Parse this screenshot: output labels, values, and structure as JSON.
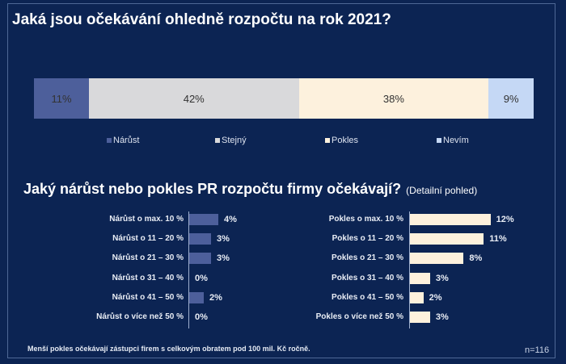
{
  "title": "Jaká jsou očekávání ohledně rozpočtu na rok 2021?",
  "subtitle": "Jaký nárůst nebo pokles PR rozpočtu firmy očekávají?",
  "subtitle_note": "(Detailní pohled)",
  "footnote": "Menší pokles očekávají zástupci firem s celkovým obratem pod 100 mil. Kč ročně.",
  "sample_size": "n=116",
  "colors": {
    "background": "#0c2453",
    "narust": "#4d5f9b",
    "stejny": "#d9d9db",
    "pokles": "#fdf1dd",
    "nevim": "#c5d8f5"
  },
  "stacked": {
    "segments": [
      {
        "label": "Nárůst",
        "value": 11,
        "text": "11%"
      },
      {
        "label": "Stejný",
        "value": 42,
        "text": "42%"
      },
      {
        "label": "Pokles",
        "value": 38,
        "text": "38%"
      },
      {
        "label": "Nevím",
        "value": 9,
        "text": "9%"
      }
    ]
  },
  "narust": {
    "rows": [
      {
        "label": "Nárůst o max. 10 %",
        "value": 4,
        "text": "4%"
      },
      {
        "label": "Nárůst o 11 – 20 %",
        "value": 3,
        "text": "3%"
      },
      {
        "label": "Nárůst o 21 – 30 %",
        "value": 3,
        "text": "3%"
      },
      {
        "label": "Nárůst o 31 – 40 %",
        "value": 0,
        "text": "0%"
      },
      {
        "label": "Nárůst o 41 – 50 %",
        "value": 2,
        "text": "2%"
      },
      {
        "label": "Nárůst o více než 50 %",
        "value": 0,
        "text": "0%"
      }
    ]
  },
  "pokles": {
    "rows": [
      {
        "label": "Pokles o max. 10 %",
        "value": 12,
        "text": "12%"
      },
      {
        "label": "Pokles o 11 – 20 %",
        "value": 11,
        "text": "11%"
      },
      {
        "label": "Pokles o 21 – 30 %",
        "value": 8,
        "text": "8%"
      },
      {
        "label": "Pokles o 31 – 40 %",
        "value": 3,
        "text": "3%"
      },
      {
        "label": "Pokles o 41 – 50 %",
        "value": 2,
        "text": "2%"
      },
      {
        "label": "Pokles o více než 50 %",
        "value": 3,
        "text": "3%"
      }
    ]
  },
  "chart_data": [
    {
      "type": "bar",
      "orientation": "horizontal-stacked",
      "title": "Jaká jsou očekávání ohledně rozpočtu na rok 2021?",
      "categories": [
        "Nárůst",
        "Stejný",
        "Pokles",
        "Nevím"
      ],
      "values": [
        11,
        42,
        38,
        9
      ],
      "unit": "%",
      "legend": [
        "Nárůst",
        "Stejný",
        "Pokles",
        "Nevím"
      ],
      "legend_position": "bottom",
      "grid": false
    },
    {
      "type": "bar",
      "orientation": "horizontal",
      "title": "Jaký nárůst nebo pokles PR rozpočtu firmy očekávají? (Detailní pohled)",
      "series_name": "Nárůst",
      "categories": [
        "Nárůst o max. 10 %",
        "Nárůst o 11 – 20 %",
        "Nárůst o 21 – 30 %",
        "Nárůst o 31 – 40 %",
        "Nárůst o 41 – 50 %",
        "Nárůst o více než 50 %"
      ],
      "values": [
        4,
        3,
        3,
        0,
        2,
        0
      ],
      "unit": "%",
      "grid": false
    },
    {
      "type": "bar",
      "orientation": "horizontal",
      "series_name": "Pokles",
      "categories": [
        "Pokles o max. 10 %",
        "Pokles o 11 – 20 %",
        "Pokles o 21 – 30 %",
        "Pokles o 31 – 40 %",
        "Pokles o 41 – 50 %",
        "Pokles o více než 50 %"
      ],
      "values": [
        12,
        11,
        8,
        3,
        2,
        3
      ],
      "unit": "%",
      "grid": false,
      "annotation": "n=116"
    }
  ]
}
